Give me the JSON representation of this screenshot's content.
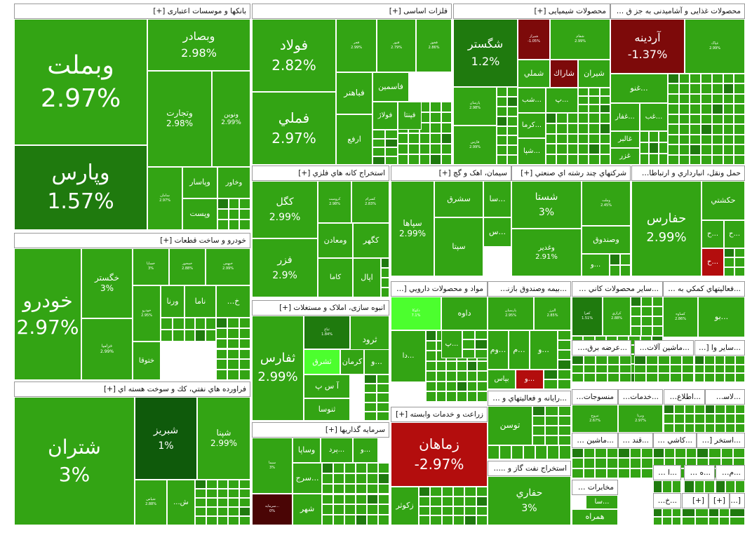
{
  "colors": {
    "green": "#33a414",
    "light_green": "#3dbb1a",
    "dark_green": "#1f7a0e",
    "darker_green": "#0f5a0b",
    "bright_green": "#4cff2e",
    "red": "#b30d0d",
    "dark_red": "#7d0a0a",
    "darkest_red": "#4a0505"
  },
  "sectors": [
    {
      "id": "banks",
      "title": "بانکها و موسسات اعتباری [+]",
      "tiles": [
        {
          "s": "وبملت",
          "p": "2.97%",
          "c": "green"
        },
        {
          "s": "وپارس",
          "p": "1.57%",
          "c": "dark_green"
        },
        {
          "s": "وبصادر",
          "p": "2.98%",
          "c": "green"
        },
        {
          "s": "وتجارت",
          "p": "2.98%",
          "c": "green"
        },
        {
          "s": "ونوین",
          "p": "2.99%",
          "c": "green"
        },
        {
          "s": "سامان",
          "p": "2.97%",
          "c": "green"
        },
        {
          "s": "وپاسار",
          "p": "",
          "c": "green"
        },
        {
          "s": "وخاور",
          "p": "",
          "c": "green"
        },
        {
          "s": "وپست",
          "p": "",
          "c": "green"
        }
      ]
    },
    {
      "id": "auto",
      "title": "خودرو و ساخت قطعات [+]",
      "tiles": [
        {
          "s": "خودرو",
          "p": "2.97%",
          "c": "green"
        },
        {
          "s": "خگستر",
          "p": "3%",
          "c": "green"
        },
        {
          "s": "خزامیا",
          "p": "2.99%",
          "c": "green"
        },
        {
          "s": "خساپا",
          "p": "3%",
          "c": "green"
        },
        {
          "s": "خمحور",
          "p": "2.88%",
          "c": "green"
        },
        {
          "s": "خبهمن",
          "p": "2.99%",
          "c": "green"
        },
        {
          "s": "ورنا",
          "p": "",
          "c": "green"
        },
        {
          "s": "ناما",
          "p": "",
          "c": "green"
        },
        {
          "s": "خ...",
          "p": "",
          "c": "green"
        },
        {
          "s": "خودرو",
          "p": "2.95%",
          "c": "green"
        },
        {
          "s": "ختوقا",
          "p": "",
          "c": "green"
        }
      ]
    },
    {
      "id": "refinery",
      "title": "فراورده هاي نفتي، كك و سوخت هسته اي [+]",
      "tiles": [
        {
          "s": "شتران",
          "p": "3%",
          "c": "green"
        },
        {
          "s": "شبريز",
          "p": "1%",
          "c": "darker_green"
        },
        {
          "s": "شپنا",
          "p": "2.99%",
          "c": "green"
        },
        {
          "s": "شپاس",
          "p": "2.88%",
          "c": "green"
        },
        {
          "s": "ش...",
          "p": "",
          "c": "green"
        }
      ]
    },
    {
      "id": "metals",
      "title": "فلزات اساسی [+]",
      "tiles": [
        {
          "s": "فولاد",
          "p": "2.82%",
          "c": "green"
        },
        {
          "s": "فملي",
          "p": "2.97%",
          "c": "green"
        },
        {
          "s": "فجر",
          "p": "2.99%",
          "c": "green"
        },
        {
          "s": "فنور",
          "p": "2.79%",
          "c": "green"
        },
        {
          "s": "فخوز",
          "p": "2.86%",
          "c": "green"
        },
        {
          "s": "فباهنر",
          "p": "",
          "c": "green"
        },
        {
          "s": "فاسمين",
          "p": "",
          "c": "green"
        },
        {
          "s": "فولاژ",
          "p": "",
          "c": "green"
        },
        {
          "s": "فپنتا",
          "p": "",
          "c": "green"
        },
        {
          "s": "ارفع",
          "p": "",
          "c": "green"
        }
      ]
    },
    {
      "id": "mining",
      "title": "استخراج كانه هاي فلزي [+]",
      "tiles": [
        {
          "s": "كگل",
          "p": "2.99%",
          "c": "green"
        },
        {
          "s": "فزر",
          "p": "2.9%",
          "c": "green"
        },
        {
          "s": "کروميت",
          "p": "2.98%",
          "c": "green"
        },
        {
          "s": "کسرام",
          "p": "2.83%",
          "c": "green"
        },
        {
          "s": "ومعادن",
          "p": "",
          "c": "green"
        },
        {
          "s": "کگهر",
          "p": "",
          "c": "green"
        },
        {
          "s": "اپال",
          "p": "",
          "c": "green"
        },
        {
          "s": "كاما",
          "p": "",
          "c": "green"
        }
      ]
    },
    {
      "id": "construction",
      "title": "انبوه سازی، املاک و مستغلات [+]",
      "tiles": [
        {
          "s": "ثفارس",
          "p": "2.99%",
          "c": "green"
        },
        {
          "s": "ثباغ",
          "p": "1.84%",
          "c": "dark_green"
        },
        {
          "s": "ثرود",
          "p": "",
          "c": "green"
        },
        {
          "s": "ثشرق",
          "p": "",
          "c": "bright_green"
        },
        {
          "s": "كرمان",
          "p": "",
          "c": "green"
        },
        {
          "s": "آ س پ",
          "p": "",
          "c": "green"
        },
        {
          "s": "ثنوسا",
          "p": "",
          "c": "green"
        },
        {
          "s": "...و",
          "p": "",
          "c": "green"
        }
      ]
    },
    {
      "id": "investment",
      "title": "سرمايه گذاريها [+]",
      "tiles": [
        {
          "s": "سيما",
          "p": "3%",
          "c": "green"
        },
        {
          "s": "وساپا",
          "p": "",
          "c": "green"
        },
        {
          "s": "...پرد",
          "p": "",
          "c": "green"
        },
        {
          "s": "...سرج",
          "p": "",
          "c": "green"
        },
        {
          "s": "شهر",
          "p": "",
          "c": "green"
        },
        {
          "s": "...سرمايه",
          "p": "0%",
          "c": "darkest_red"
        },
        {
          "s": "...و",
          "p": "",
          "c": "green"
        }
      ]
    },
    {
      "id": "chemical",
      "title": "محصولات شیمیایی [+]",
      "tiles": [
        {
          "s": "شگستر",
          "p": "1.2%",
          "c": "dark_green"
        },
        {
          "s": "شیراز",
          "p": "-1.05%",
          "c": "dark_red"
        },
        {
          "s": "شفام",
          "p": "2.99%",
          "c": "green"
        },
        {
          "s": "شملي",
          "p": "",
          "c": "green"
        },
        {
          "s": "شاراك",
          "p": "",
          "c": "dark_red"
        },
        {
          "s": "شیران",
          "p": "",
          "c": "green"
        },
        {
          "s": "پارسان",
          "p": "2.98%",
          "c": "green"
        },
        {
          "s": "...شب",
          "p": "",
          "c": "green"
        },
        {
          "s": "...پ",
          "p": "",
          "c": "green"
        },
        {
          "s": "فارس",
          "p": "2.99%",
          "c": "green"
        },
        {
          "s": "...كرما",
          "p": "",
          "c": "green"
        },
        {
          "s": "...شپا",
          "p": "",
          "c": "green"
        }
      ]
    },
    {
      "id": "cement",
      "title": "سیمان، اهک و گچ [+]",
      "tiles": [
        {
          "s": "سپاها",
          "p": "2.99%",
          "c": "green"
        },
        {
          "s": "سشرق",
          "p": "",
          "c": "green"
        },
        {
          "s": "...سا",
          "p": "",
          "c": "green"
        },
        {
          "s": "...س",
          "p": "",
          "c": "green"
        },
        {
          "s": "سپتا",
          "p": "",
          "c": "green"
        }
      ]
    },
    {
      "id": "multi",
      "title": "شركتهاي چند رشته اي صنعتي [+]",
      "tiles": [
        {
          "s": "شستا",
          "p": "3%",
          "c": "green"
        },
        {
          "s": "وغدير",
          "p": "2.91%",
          "c": "green"
        },
        {
          "s": "وملت",
          "p": "2.45%",
          "c": "green"
        },
        {
          "s": "وصندوق",
          "p": "",
          "c": "green"
        },
        {
          "s": "...و",
          "p": "",
          "c": "green"
        }
      ]
    },
    {
      "id": "transport",
      "title": "حمل ونقل، انبارداري و ارتباطات [+]",
      "tiles": [
        {
          "s": "حفارس",
          "p": "2.99%",
          "c": "green"
        },
        {
          "s": "حكشتي",
          "p": "",
          "c": "green"
        },
        {
          "s": "...ح",
          "p": "",
          "c": "green"
        },
        {
          "s": "...ح",
          "p": "",
          "c": "green"
        },
        {
          "s": "...ح",
          "p": "",
          "c": "red"
        }
      ]
    },
    {
      "id": "food",
      "title": "محصولات غذایی و آشامیدنی به جز ق [+]",
      "tiles": [
        {
          "s": "آردینه",
          "p": "-1.37%",
          "c": "dark_red"
        },
        {
          "s": "غپاک",
          "p": "2.99%",
          "c": "green"
        },
        {
          "s": "...غنو",
          "p": "",
          "c": "green"
        },
        {
          "s": "...غفار",
          "p": "",
          "c": "green"
        },
        {
          "s": "...غب",
          "p": "",
          "c": "green"
        },
        {
          "s": "غالبر",
          "p": "",
          "c": "green"
        },
        {
          "s": "غزر",
          "p": "",
          "c": "green"
        }
      ]
    },
    {
      "id": "pharma",
      "title": "مواد و محصولات دارويي [+]",
      "tiles": [
        {
          "s": "دکوکا",
          "p": "7.1%",
          "c": "bright_green"
        },
        {
          "s": "داوه",
          "p": "",
          "c": "green"
        },
        {
          "s": "...پ",
          "p": "",
          "c": "green"
        },
        {
          "s": "...دا",
          "p": "",
          "c": "green"
        }
      ]
    },
    {
      "id": "agri",
      "title": "زراعت و خدمات وابسته [+]",
      "tiles": [
        {
          "s": "زماهان",
          "p": "-2.97%",
          "c": "red"
        },
        {
          "s": "زكوثر",
          "p": "",
          "c": "green"
        }
      ]
    },
    {
      "id": "insurance",
      "title": "...بیمه وصندوق بازنش [+]",
      "tiles": [
        {
          "s": "پارسيان",
          "p": "2.95%",
          "c": "green"
        },
        {
          "s": "البرز",
          "p": "2.85%",
          "c": "green"
        },
        {
          "s": "...وم",
          "p": "",
          "c": "green"
        },
        {
          "s": "...م",
          "p": "",
          "c": "green"
        },
        {
          "s": "...و",
          "p": "",
          "c": "green"
        },
        {
          "s": "بپاس",
          "p": "",
          "c": "green"
        },
        {
          "s": "...و",
          "p": "",
          "c": "red"
        }
      ]
    },
    {
      "id": "otherminerals",
      "title": "...سایر محصولات كاني غ [+]",
      "tiles": [
        {
          "s": "كفرا",
          "p": "1.51%",
          "c": "dark_green"
        },
        {
          "s": "كرازي",
          "p": "2.88%",
          "c": "green"
        }
      ]
    },
    {
      "id": "support",
      "title": "...فعاليتهاي كمكي به ن [+]",
      "tiles": [
        {
          "s": "کساوه",
          "p": "2.86%",
          "c": "green"
        },
        {
          "s": "...بو",
          "p": "",
          "c": "green"
        }
      ]
    },
    {
      "id": "computer",
      "title": "...رايانه و فعاليتهاي و [+]",
      "tiles": [
        {
          "s": "توسن",
          "p": "",
          "c": "green"
        }
      ]
    },
    {
      "id": "oilgas",
      "title": "استخراج نفت گاز و ... [+]",
      "tiles": [
        {
          "s": "حفاري",
          "p": "3%",
          "c": "green"
        }
      ]
    },
    {
      "id": "electric",
      "title": "...عرضه برق، گا [+]",
      "tiles": []
    },
    {
      "id": "machinery",
      "title": "...ماشين آلات [+]",
      "tiles": []
    },
    {
      "id": "othersmall",
      "title": "...ساير وا [+]",
      "tiles": []
    },
    {
      "id": "textile",
      "title": "منسوجات [+]",
      "tiles": [
        {
          "s": "نبروج",
          "p": "2.67%",
          "c": "green"
        }
      ]
    },
    {
      "id": "services",
      "title": "...خدمات [+]",
      "tiles": [
        {
          "s": "وبرنا",
          "p": "2.97%",
          "c": "green"
        }
      ]
    },
    {
      "id": "info",
      "title": "...اطلاع [+]",
      "tiles": []
    },
    {
      "id": "plastic",
      "title": "...لاست [+]",
      "tiles": []
    },
    {
      "id": "machine2",
      "title": "...ماشين ا [+]",
      "tiles": []
    },
    {
      "id": "sugar",
      "title": "...قند [+]",
      "tiles": []
    },
    {
      "id": "tile",
      "title": "...كاشي و [+]",
      "tiles": []
    },
    {
      "id": "extract",
      "title": "...استخر [+]",
      "tiles": []
    },
    {
      "id": "telecom",
      "title": "مخابرات [+]",
      "tiles": [
        {
          "s": "همراه",
          "p": "",
          "c": "green"
        },
        {
          "s": "...سا",
          "p": "",
          "c": "green"
        }
      ]
    },
    {
      "id": "e1",
      "title": "...ا [+]",
      "tiles": []
    },
    {
      "id": "e2",
      "title": "...ه [+]",
      "tiles": []
    },
    {
      "id": "e3",
      "title": "...م [+]",
      "tiles": []
    },
    {
      "id": "e4",
      "title": "...خ [+]",
      "tiles": []
    },
    {
      "id": "e5",
      "title": "[+]",
      "tiles": []
    },
    {
      "id": "e6",
      "title": "[+]",
      "tiles": []
    },
    {
      "id": "e7",
      "title": "[+]",
      "tiles": []
    }
  ]
}
